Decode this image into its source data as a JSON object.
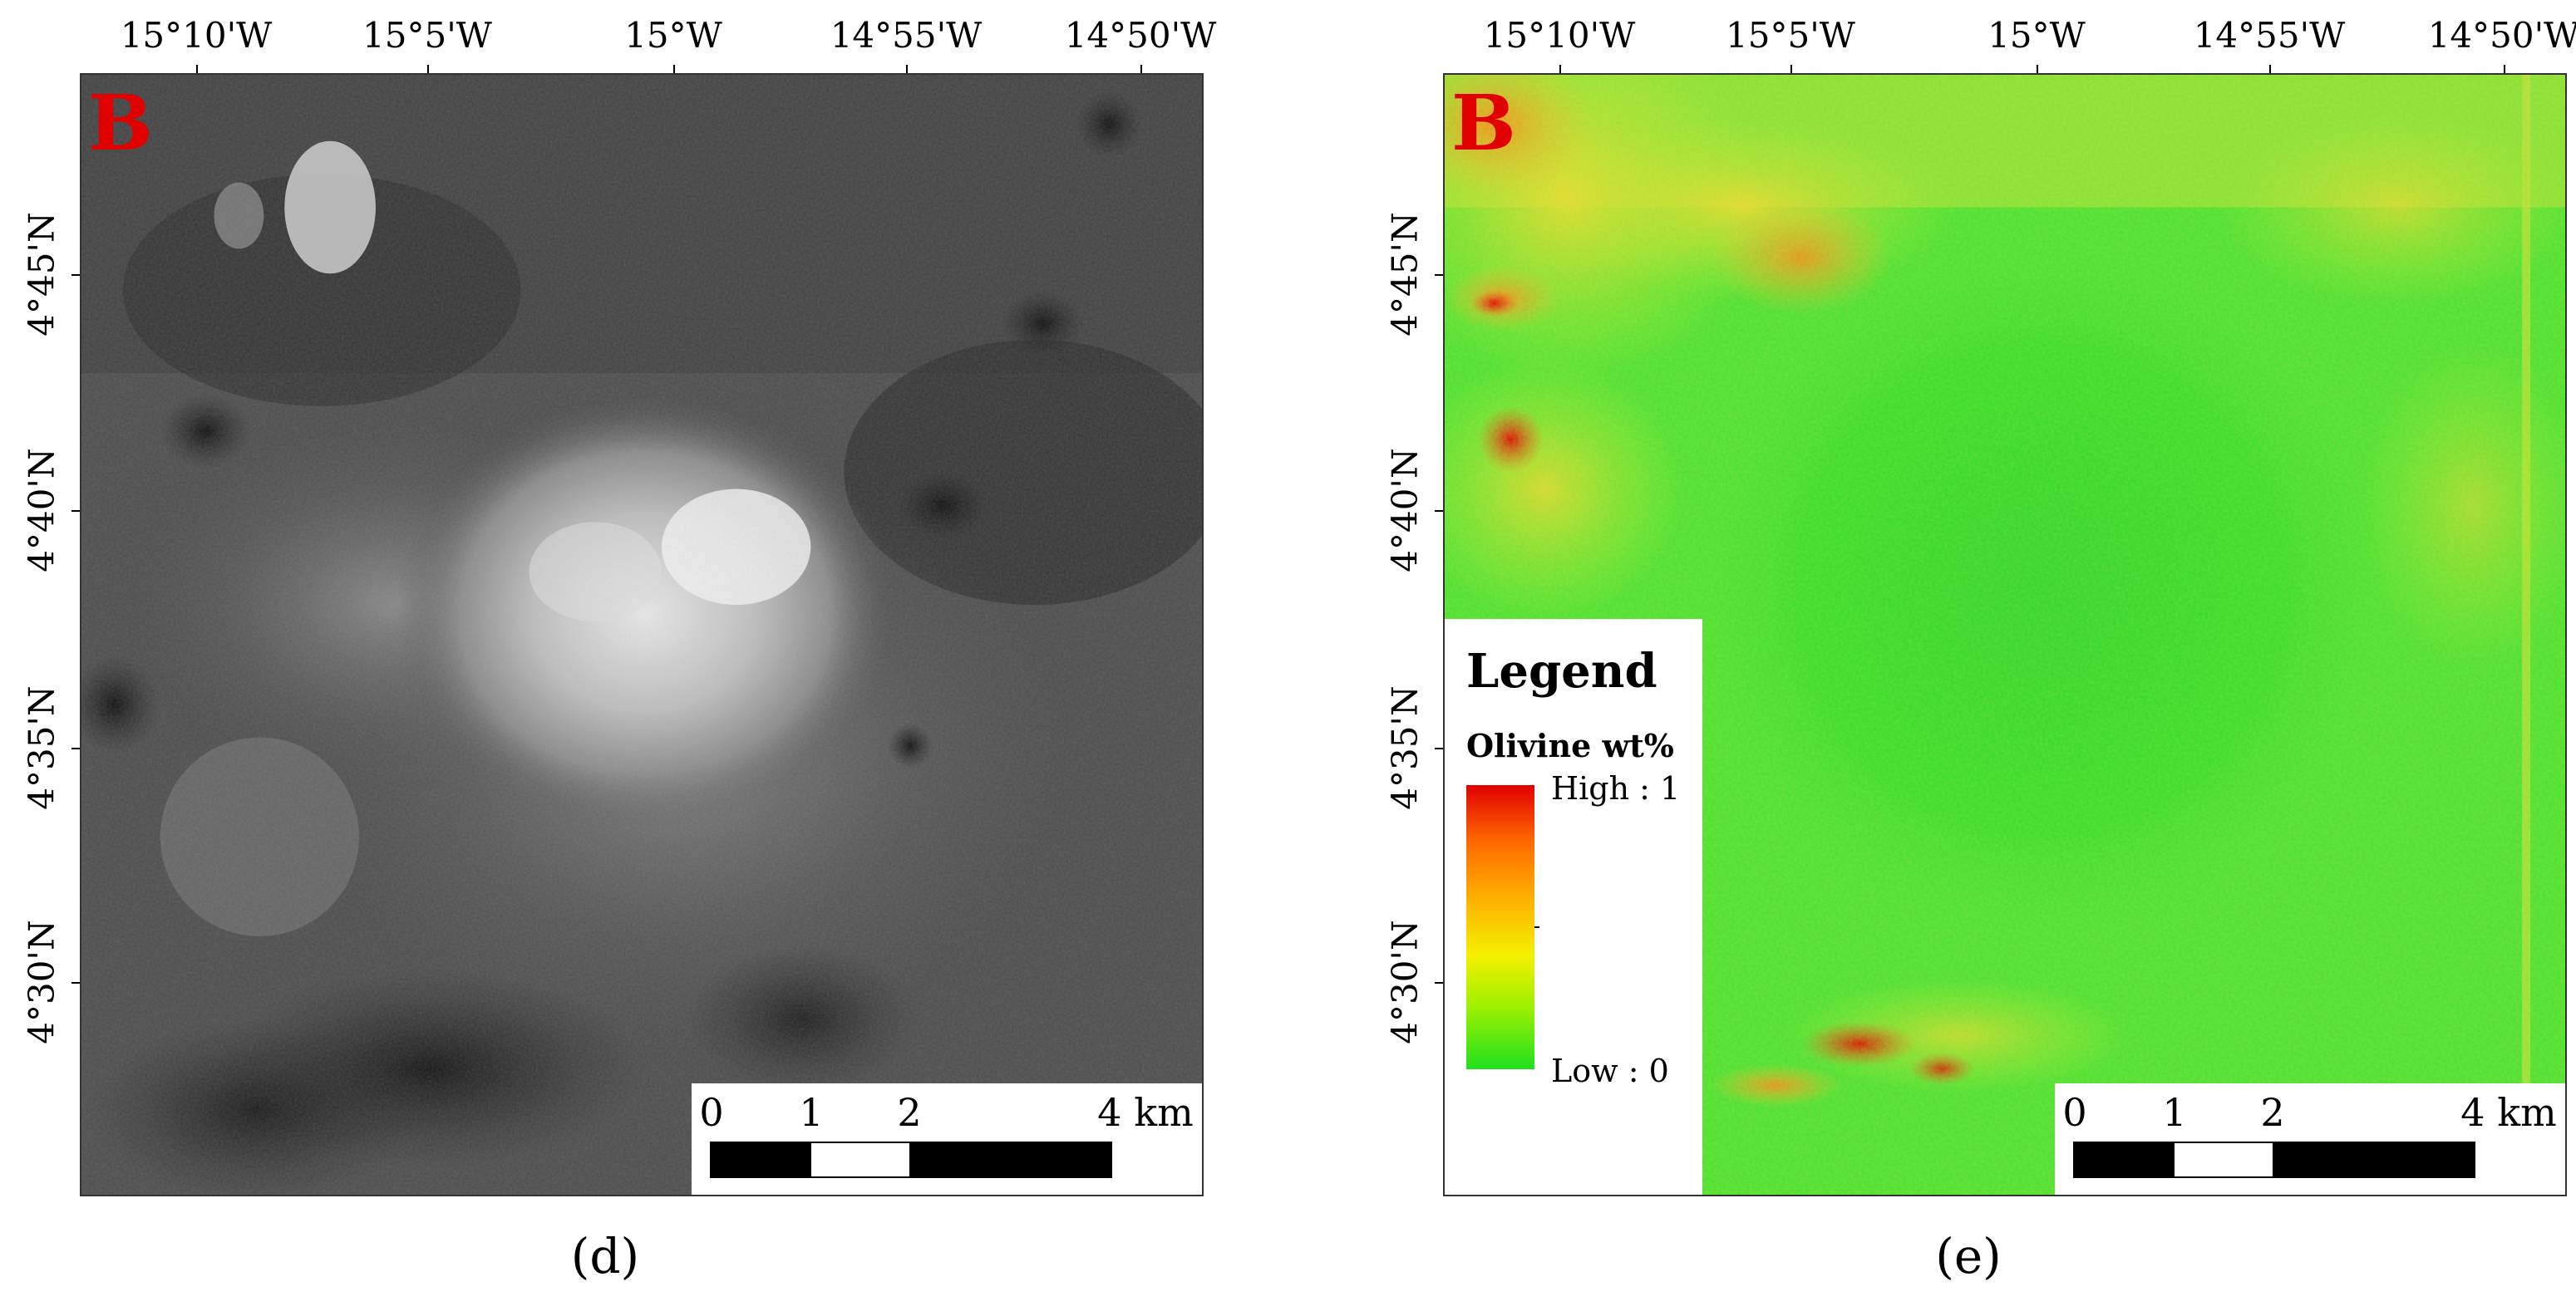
{
  "panels": {
    "d": {
      "letter": "B",
      "caption": "(d)",
      "lon_labels": [
        "15°10'W",
        "15°5'W",
        "15°W",
        "14°55'W",
        "14°50'W"
      ],
      "lat_labels": [
        "4°45'N",
        "4°40'N",
        "4°35'N",
        "4°30'N"
      ],
      "scale_labels": [
        "0",
        "1",
        "2",
        "4 km"
      ]
    },
    "e": {
      "letter": "B",
      "caption": "(e)",
      "lon_labels": [
        "15°10'W",
        "15°5'W",
        "15°W",
        "14°55'W",
        "14°50'W"
      ],
      "lat_labels": [
        "4°45'N",
        "4°40'N",
        "4°35'N",
        "4°30'N"
      ],
      "scale_labels": [
        "0",
        "1",
        "2",
        "4 km"
      ],
      "legend": {
        "title": "Legend",
        "variable": "Olivine wt%",
        "high": "High : 1",
        "low": "Low : 0",
        "ramp_colors": [
          "#e00000",
          "#ff6a00",
          "#ffb000",
          "#f4f000",
          "#9ef000",
          "#20e020"
        ]
      }
    }
  },
  "colors": {
    "panel_letter": "#e00000",
    "background_map_d": "#4a4a4a",
    "background_map_e": "#33d633"
  }
}
